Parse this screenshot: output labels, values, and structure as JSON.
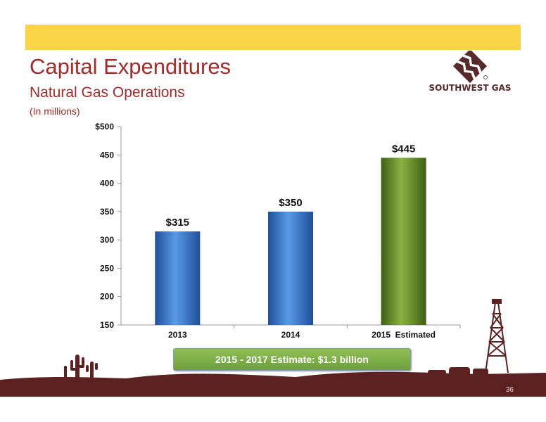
{
  "slide": {
    "title": "Capital Expenditures",
    "subtitle": "Natural Gas Operations",
    "units_note": "(In millions)",
    "callout": "2015 - 2017 Estimate: $1.3 billion",
    "page_number": "36",
    "logo_text": "SOUTHWEST GAS"
  },
  "colors": {
    "top_bar": "#f9d546",
    "title": "#a52a2a",
    "bar_blue": "#3a78c8",
    "bar_green": "#6b8e2a",
    "footer": "#5c2222"
  },
  "chart_data": {
    "type": "bar",
    "categories": [
      "2013",
      "2014",
      "2015  Estimated"
    ],
    "values": [
      315,
      350,
      445
    ],
    "data_labels": [
      "$315",
      "$350",
      "$445"
    ],
    "y_ticks": [
      150,
      200,
      250,
      300,
      350,
      400,
      450,
      500
    ],
    "y_tick_labels": [
      "150",
      "200",
      "250",
      "300",
      "350",
      "400",
      "450",
      "$500"
    ],
    "ylim": [
      150,
      500
    ],
    "grid": false,
    "legend": "none",
    "bar_colors": [
      "blue",
      "blue",
      "green"
    ]
  }
}
